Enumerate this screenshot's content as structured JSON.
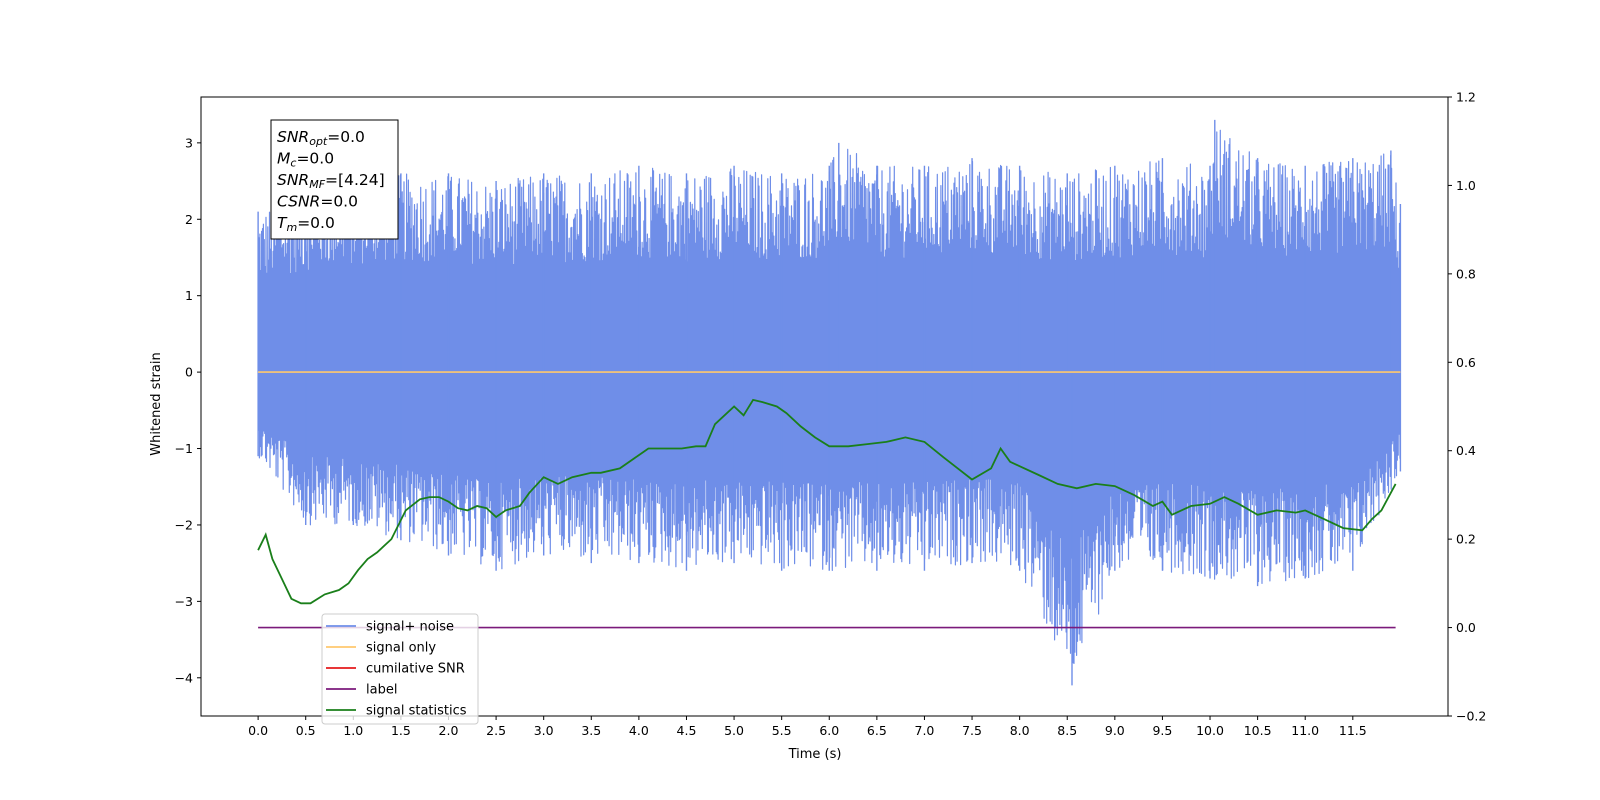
{
  "chart_data": {
    "type": "line",
    "xlabel": "Time (s)",
    "ylabel_left": "Whitened strain",
    "ylabel_right": "",
    "xlim": [
      -0.6,
      12.5
    ],
    "ylim_left": [
      -4.5,
      3.6
    ],
    "ylim_right": [
      -0.2,
      1.2
    ],
    "x_ticks": [
      "0.0",
      "0.5",
      "1.0",
      "1.5",
      "2.0",
      "2.5",
      "3.0",
      "3.5",
      "4.0",
      "4.5",
      "5.0",
      "5.5",
      "6.0",
      "6.5",
      "7.0",
      "7.5",
      "8.0",
      "8.5",
      "9.0",
      "9.5",
      "10.0",
      "10.5",
      "11.0",
      "11.5"
    ],
    "y_ticks_left": [
      "−4",
      "−3",
      "−2",
      "−1",
      "0",
      "1",
      "2",
      "3"
    ],
    "y_ticks_right": [
      "−0.2",
      "0.0",
      "0.2",
      "0.4",
      "0.6",
      "0.8",
      "1.0",
      "1.2"
    ],
    "info_box": {
      "lines": [
        {
          "base": "SNR",
          "sub": "opt",
          "value": "=0.0"
        },
        {
          "base": "M",
          "sub": "c",
          "value": "=0.0"
        },
        {
          "base": "SNR",
          "sub": "MF",
          "value": "=[4.24]"
        },
        {
          "base": "CSNR",
          "sub": "",
          "value": "=0.0"
        },
        {
          "base": "T",
          "sub": "m",
          "value": "=0.0"
        }
      ]
    },
    "legend": {
      "placement": "lower-left",
      "entries": [
        {
          "label": "signal+ noise",
          "color": "#6f8ee8"
        },
        {
          "label": "signal only",
          "color": "#ffc86e"
        },
        {
          "label": "cumilative SNR",
          "color": "#e41a1c"
        },
        {
          "label": "label",
          "color": "#7b1a7b"
        },
        {
          "label": "signal statistics",
          "color": "#1a7f1a"
        }
      ]
    },
    "series": [
      {
        "name": "signal+ noise",
        "axis": "left",
        "color": "#6f8ee8",
        "x_range": [
          0.0,
          12.0
        ],
        "envelope_top": [
          [
            0.0,
            2.1
          ],
          [
            0.5,
            2.4
          ],
          [
            1.0,
            2.5
          ],
          [
            1.5,
            2.6
          ],
          [
            2.0,
            2.6
          ],
          [
            2.5,
            2.5
          ],
          [
            3.0,
            2.6
          ],
          [
            3.5,
            2.6
          ],
          [
            4.0,
            2.7
          ],
          [
            4.5,
            2.6
          ],
          [
            5.0,
            2.7
          ],
          [
            5.5,
            2.6
          ],
          [
            6.0,
            2.7
          ],
          [
            6.1,
            3.0
          ],
          [
            6.5,
            2.7
          ],
          [
            7.0,
            2.7
          ],
          [
            7.5,
            2.8
          ],
          [
            8.0,
            2.7
          ],
          [
            8.5,
            2.6
          ],
          [
            9.0,
            2.7
          ],
          [
            9.5,
            2.8
          ],
          [
            10.0,
            2.7
          ],
          [
            10.05,
            3.3
          ],
          [
            10.5,
            2.8
          ],
          [
            11.0,
            2.7
          ],
          [
            11.5,
            2.8
          ],
          [
            11.9,
            2.9
          ],
          [
            12.0,
            2.2
          ]
        ],
        "envelope_bottom": [
          [
            0.0,
            -1.1
          ],
          [
            0.5,
            -2.0
          ],
          [
            1.0,
            -2.0
          ],
          [
            1.5,
            -2.2
          ],
          [
            2.0,
            -2.4
          ],
          [
            2.5,
            -2.6
          ],
          [
            3.0,
            -2.4
          ],
          [
            3.5,
            -2.5
          ],
          [
            4.0,
            -2.5
          ],
          [
            4.5,
            -2.6
          ],
          [
            5.0,
            -2.5
          ],
          [
            5.5,
            -2.6
          ],
          [
            6.0,
            -2.6
          ],
          [
            6.5,
            -2.6
          ],
          [
            7.0,
            -2.6
          ],
          [
            7.5,
            -2.5
          ],
          [
            8.0,
            -2.6
          ],
          [
            8.55,
            -4.1
          ],
          [
            9.0,
            -2.6
          ],
          [
            9.5,
            -2.6
          ],
          [
            10.0,
            -2.7
          ],
          [
            10.5,
            -2.8
          ],
          [
            11.0,
            -2.7
          ],
          [
            11.5,
            -2.6
          ],
          [
            12.0,
            -1.3
          ]
        ]
      },
      {
        "name": "signal only",
        "axis": "left",
        "color": "#ffc86e",
        "x": [
          0.0,
          12.0
        ],
        "y": [
          0.0,
          0.0
        ]
      },
      {
        "name": "label",
        "axis": "right",
        "color": "#7b1a7b",
        "x": [
          0.0,
          11.95
        ],
        "y": [
          0.0,
          0.0
        ]
      },
      {
        "name": "signal statistics",
        "axis": "right",
        "color": "#1a7f1a",
        "x": [
          0.0,
          0.08,
          0.15,
          0.25,
          0.35,
          0.45,
          0.55,
          0.7,
          0.85,
          0.95,
          1.05,
          1.15,
          1.25,
          1.4,
          1.55,
          1.7,
          1.8,
          1.9,
          2.0,
          2.1,
          2.2,
          2.3,
          2.4,
          2.5,
          2.6,
          2.75,
          2.85,
          3.0,
          3.15,
          3.3,
          3.5,
          3.6,
          3.8,
          4.0,
          4.1,
          4.25,
          4.45,
          4.6,
          4.7,
          4.8,
          5.0,
          5.1,
          5.2,
          5.3,
          5.45,
          5.55,
          5.7,
          5.85,
          6.0,
          6.2,
          6.4,
          6.6,
          6.8,
          7.0,
          7.2,
          7.35,
          7.5,
          7.7,
          7.8,
          7.9,
          8.0,
          8.2,
          8.4,
          8.6,
          8.8,
          9.0,
          9.2,
          9.4,
          9.5,
          9.6,
          9.8,
          10.0,
          10.15,
          10.3,
          10.5,
          10.7,
          10.9,
          11.0,
          11.2,
          11.4,
          11.6,
          11.7,
          11.8,
          11.95
        ],
        "y": [
          0.175,
          0.21,
          0.155,
          0.11,
          0.065,
          0.055,
          0.055,
          0.075,
          0.085,
          0.1,
          0.13,
          0.155,
          0.17,
          0.2,
          0.265,
          0.29,
          0.295,
          0.295,
          0.285,
          0.27,
          0.265,
          0.275,
          0.27,
          0.25,
          0.265,
          0.275,
          0.305,
          0.34,
          0.325,
          0.34,
          0.35,
          0.35,
          0.36,
          0.39,
          0.405,
          0.405,
          0.405,
          0.41,
          0.41,
          0.46,
          0.5,
          0.48,
          0.515,
          0.51,
          0.5,
          0.485,
          0.455,
          0.43,
          0.41,
          0.41,
          0.415,
          0.42,
          0.43,
          0.42,
          0.385,
          0.36,
          0.335,
          0.36,
          0.405,
          0.375,
          0.365,
          0.345,
          0.325,
          0.315,
          0.325,
          0.32,
          0.3,
          0.275,
          0.285,
          0.255,
          0.275,
          0.28,
          0.295,
          0.28,
          0.255,
          0.265,
          0.26,
          0.265,
          0.245,
          0.225,
          0.22,
          0.245,
          0.265,
          0.325
        ]
      }
    ]
  }
}
